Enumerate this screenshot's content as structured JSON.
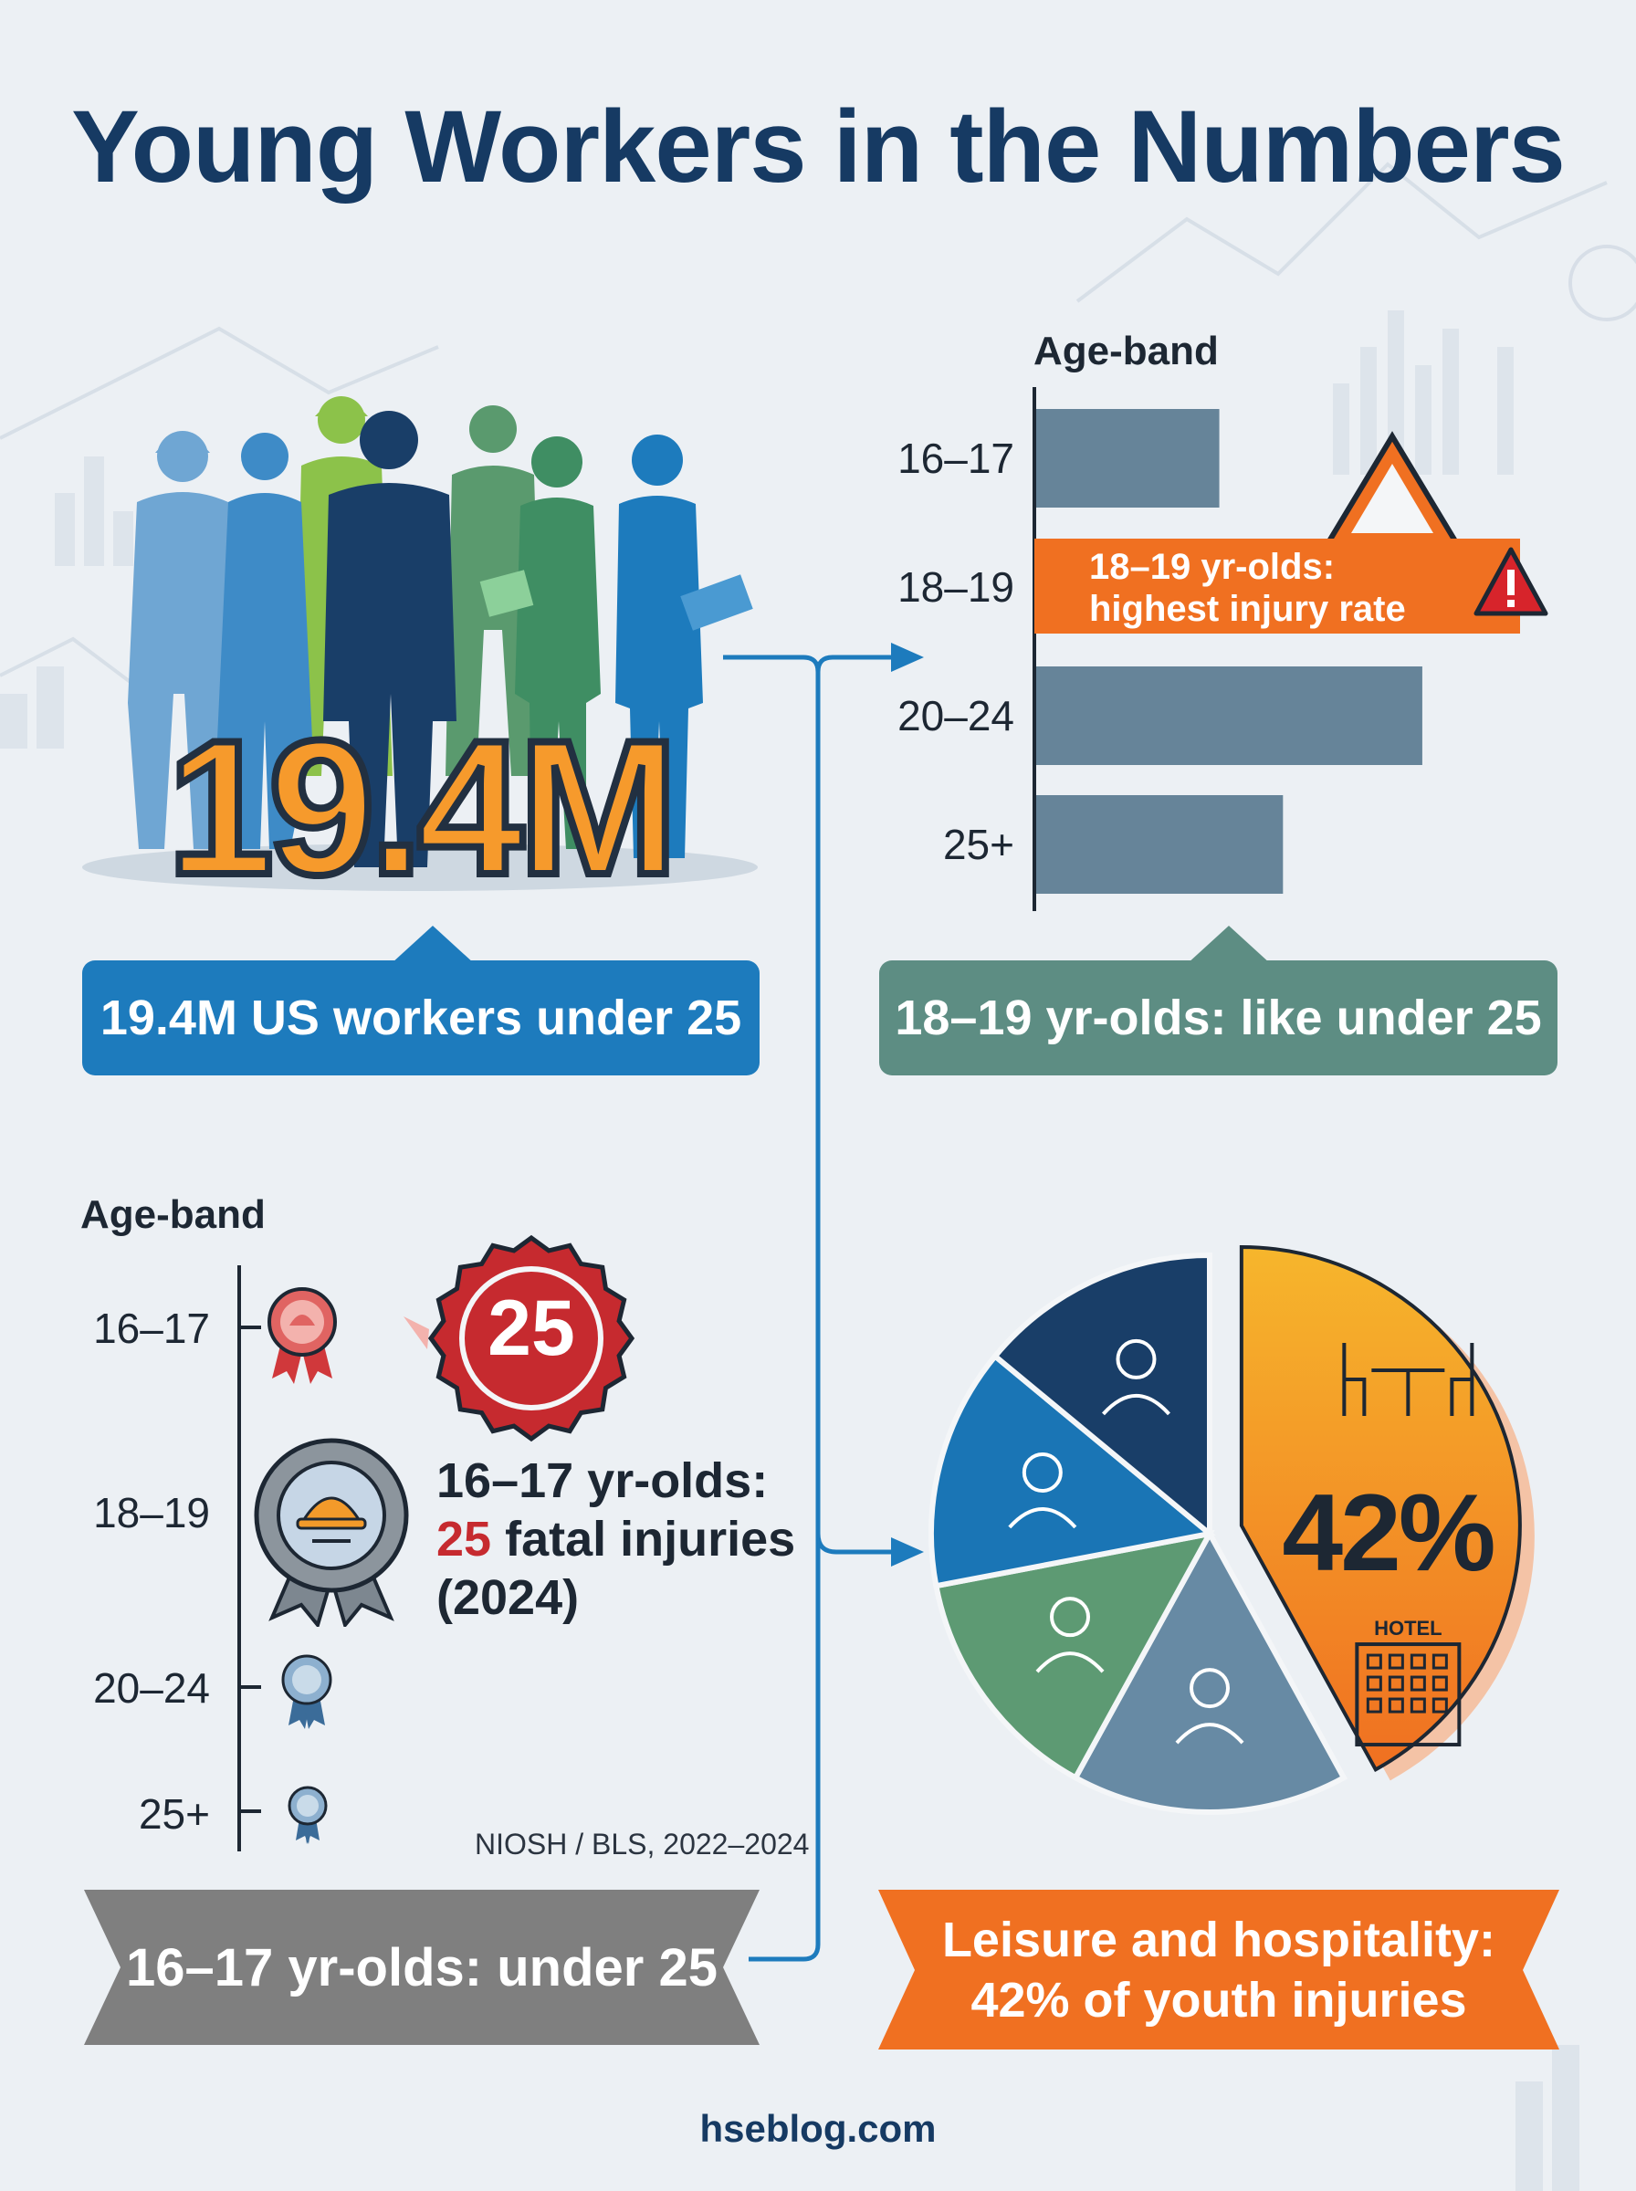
{
  "title": "Young Workers in the Numbers",
  "workers_total": {
    "figure": "19.4M",
    "caption": "19.4M US workers under 25"
  },
  "bar_panel": {
    "axis_title": "Age-band",
    "highlight_banner_line1": "18–19 yr-olds:",
    "highlight_banner_line2": "highest injury rate",
    "caption": "18–19 yr-olds: like under 25"
  },
  "fatal_panel": {
    "axis_title": "Age-band",
    "categories": [
      "16–17",
      "18–19",
      "20–24",
      "25+"
    ],
    "badge_value": "25",
    "text_line1": "16–17 yr-olds:",
    "text_value": "25",
    "text_suffix": " fatal injuries",
    "text_line3": "(2024)",
    "source": "NIOSH / BLS, 2022–2024",
    "footer": "16–17 yr-olds: under 25"
  },
  "pie_panel": {
    "highlight_value": "42%",
    "hotel_sign": "HOTEL",
    "footer_line1": "Leisure and hospitality:",
    "footer_line2": "42% of youth injuries"
  },
  "site": "hseblog.com",
  "colors": {
    "navy": "#163a63",
    "blue": "#1d7bbd",
    "teal": "#5d8d83",
    "orange": "#f07021",
    "bar": "#668499",
    "red": "#c62a2f"
  },
  "chart_data": [
    {
      "type": "bar",
      "orientation": "horizontal",
      "title": "",
      "ylabel": "Age-band",
      "categories": [
        "16–17",
        "18–19",
        "20–24",
        "25+"
      ],
      "values": [
        46,
        100,
        97,
        62
      ],
      "highlight": "18–19",
      "grid": false
    },
    {
      "type": "pie",
      "slices": [
        {
          "label": "Leisure and hospitality",
          "value": 42,
          "color": "#f39a2a",
          "icon": "dining-table-icon"
        },
        {
          "label": "",
          "value": 16,
          "color": "#678aa4",
          "icon": "building-icon"
        },
        {
          "label": "",
          "value": 14,
          "color": "#5d9a73",
          "icon": "chef-icon"
        },
        {
          "label": "",
          "value": 14,
          "color": "#1a75b5",
          "icon": "dinner-plate-icon"
        },
        {
          "label": "",
          "value": 14,
          "color": "#193e68",
          "icon": "server-woman-icon"
        }
      ]
    }
  ]
}
